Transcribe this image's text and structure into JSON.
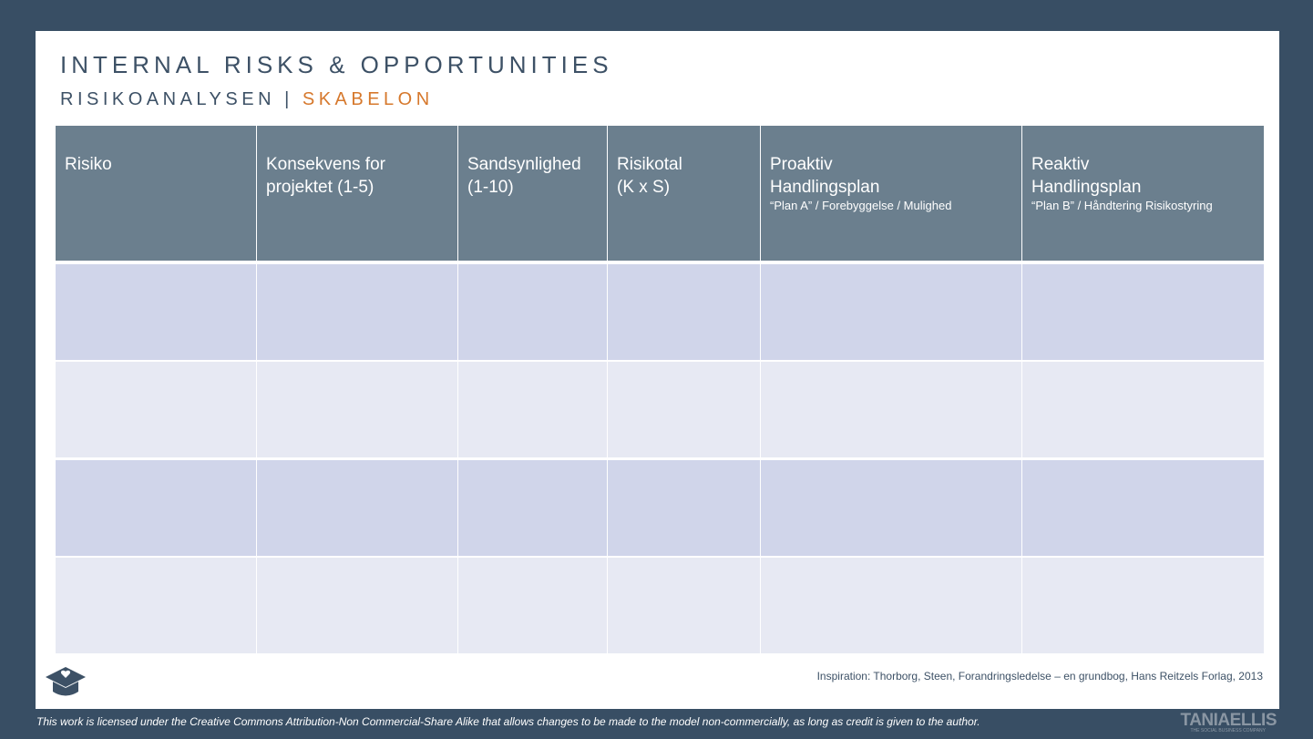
{
  "header": {
    "title": "INTERNAL RISKS & OPPORTUNITIES",
    "subtitle": "RISIKOANALYSEN",
    "separator": "|",
    "subtitle_accent": "SKABELON"
  },
  "table": {
    "columns": [
      {
        "lines": [
          "Risiko"
        ]
      },
      {
        "lines": [
          "Konsekvens for",
          "projektet (1-5)"
        ]
      },
      {
        "lines": [
          "Sandsynlighed",
          "(1-10)"
        ]
      },
      {
        "lines": [
          "Risikotal",
          "(K x S)"
        ]
      },
      {
        "lines": [
          "Proaktiv",
          "Handlingsplan"
        ],
        "note": "“Plan A” / Forebyggelse / Mulighed"
      },
      {
        "lines": [
          "Reaktiv",
          "Handlingsplan"
        ],
        "note": "“Plan B” / Håndtering  Risikostyring"
      }
    ]
  },
  "footer": {
    "inspiration": "Inspiration: Thorborg, Steen, Forandringsledelse – en grundbog, Hans Reitzels Forlag, 2013",
    "license": "This work is licensed under the Creative Commons Attribution-Non Commercial-Share Alike that allows changes to be made to the model non-commercially, as long as credit is given to the author.",
    "logo": "TANIAELLIS",
    "logo_tagline": "THE SOCIAL BUSINESS COMPANY"
  }
}
